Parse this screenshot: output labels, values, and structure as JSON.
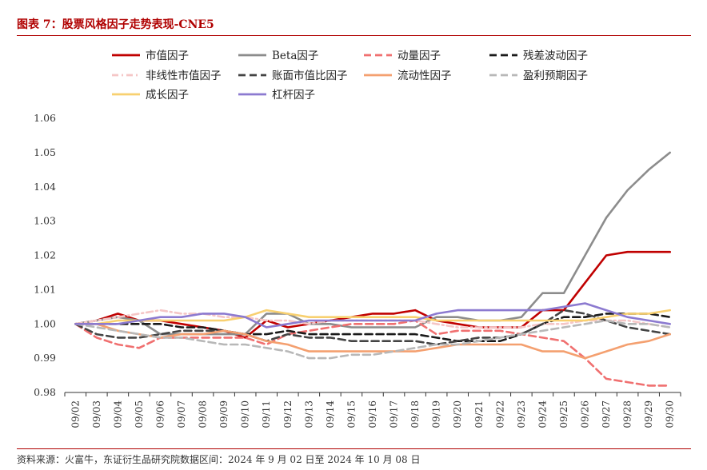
{
  "title": "图表 7：股票风格因子走势表现-CNE5",
  "source": "资料来源：火富牛，东证衍生品研究院数据区间：2024 年 9 月 02 日至 2024 年 10 月 08 日",
  "chart_data": {
    "type": "line",
    "xlabel": "",
    "ylabel": "",
    "ylim": [
      0.98,
      1.06
    ],
    "yticks": [
      "0.98",
      "0.99",
      "1.00",
      "1.01",
      "1.02",
      "1.03",
      "1.04",
      "1.05",
      "1.06"
    ],
    "x": [
      "09/02",
      "09/03",
      "09/04",
      "09/05",
      "09/06",
      "09/07",
      "09/08",
      "09/09",
      "09/10",
      "09/11",
      "09/12",
      "09/13",
      "09/14",
      "09/15",
      "09/16",
      "09/17",
      "09/18",
      "09/19",
      "09/20",
      "09/21",
      "09/22",
      "09/23",
      "09/24",
      "09/25",
      "09/26",
      "09/27",
      "09/28",
      "09/29",
      "09/30"
    ],
    "legend_position": "top",
    "series": [
      {
        "name": "市值因子",
        "color": "#c00000",
        "dash": "solid",
        "values": [
          1.0,
          1.001,
          1.003,
          1.001,
          1.001,
          1.0,
          0.999,
          0.998,
          0.996,
          1.001,
          0.999,
          1.0,
          1.001,
          1.002,
          1.003,
          1.003,
          1.004,
          1.001,
          1.0,
          0.999,
          0.999,
          0.999,
          1.004,
          1.004,
          1.012,
          1.02,
          1.021,
          1.021,
          1.021
        ]
      },
      {
        "name": "Beta因子",
        "color": "#8c8c8c",
        "dash": "solid",
        "values": [
          1.0,
          1.001,
          1.002,
          1.001,
          0.997,
          0.997,
          0.997,
          0.997,
          0.997,
          1.003,
          1.003,
          1.0,
          1.0,
          0.999,
          0.999,
          0.999,
          0.999,
          1.002,
          1.002,
          1.001,
          1.001,
          1.002,
          1.009,
          1.009,
          1.02,
          1.031,
          1.039,
          1.045,
          1.05
        ]
      },
      {
        "name": "动量因子",
        "color": "#f07070",
        "dash": "dashed",
        "values": [
          1.0,
          0.996,
          0.994,
          0.993,
          0.996,
          0.996,
          0.996,
          0.996,
          0.996,
          0.994,
          0.997,
          0.998,
          0.999,
          1.0,
          1.0,
          1.0,
          1.001,
          0.997,
          0.998,
          0.998,
          0.998,
          0.997,
          0.996,
          0.995,
          0.99,
          0.984,
          0.983,
          0.982,
          0.982
        ]
      },
      {
        "name": "残差波动因子",
        "color": "#1a1a1a",
        "dash": "dashed",
        "values": [
          1.0,
          1.0,
          1.0,
          1.0,
          1.0,
          0.999,
          0.999,
          0.998,
          0.997,
          0.997,
          0.998,
          0.997,
          0.997,
          0.997,
          0.997,
          0.997,
          0.997,
          0.996,
          0.995,
          0.995,
          0.995,
          0.997,
          1.0,
          1.002,
          1.002,
          1.003,
          1.003,
          1.003,
          1.002
        ]
      },
      {
        "name": "非线性市值因子",
        "color": "#f5c6c6",
        "dash": "dashdot",
        "values": [
          1.0,
          1.001,
          1.002,
          1.003,
          1.004,
          1.003,
          1.003,
          1.002,
          1.002,
          1.001,
          1.001,
          1.0,
          1.001,
          1.001,
          1.001,
          1.001,
          1.001,
          1.0,
          0.999,
          0.999,
          0.999,
          0.999,
          1.0,
          1.0,
          1.001,
          1.001,
          1.001,
          1.0,
          0.999
        ]
      },
      {
        "name": "账面市值比因子",
        "color": "#444444",
        "dash": "dashed",
        "values": [
          1.0,
          0.997,
          0.996,
          0.996,
          0.997,
          0.998,
          0.998,
          0.998,
          0.997,
          0.995,
          0.997,
          0.996,
          0.996,
          0.995,
          0.995,
          0.995,
          0.995,
          0.994,
          0.995,
          0.996,
          0.996,
          0.997,
          1.0,
          1.004,
          1.003,
          1.001,
          0.999,
          0.998,
          0.997
        ]
      },
      {
        "name": "流动性因子",
        "color": "#f4a070",
        "dash": "solid",
        "values": [
          1.0,
          1.0,
          0.998,
          0.997,
          0.996,
          0.997,
          0.997,
          0.998,
          0.997,
          0.995,
          0.994,
          0.992,
          0.992,
          0.992,
          0.992,
          0.992,
          0.992,
          0.993,
          0.994,
          0.994,
          0.994,
          0.994,
          0.992,
          0.992,
          0.99,
          0.992,
          0.994,
          0.995,
          0.997
        ]
      },
      {
        "name": "盈利预期因子",
        "color": "#b8b8b8",
        "dash": "dashed",
        "values": [
          1.0,
          0.999,
          0.998,
          0.997,
          0.996,
          0.996,
          0.995,
          0.994,
          0.994,
          0.993,
          0.992,
          0.99,
          0.99,
          0.991,
          0.991,
          0.992,
          0.993,
          0.994,
          0.994,
          0.995,
          0.996,
          0.997,
          0.998,
          0.999,
          1.0,
          1.001,
          1.0,
          1.0,
          0.999
        ]
      },
      {
        "name": "成长因子",
        "color": "#f8d070",
        "dash": "solid",
        "values": [
          1.0,
          1.0,
          1.001,
          1.001,
          1.001,
          1.001,
          1.001,
          1.001,
          1.002,
          1.004,
          1.003,
          1.002,
          1.002,
          1.002,
          1.002,
          1.002,
          1.002,
          1.001,
          1.001,
          1.001,
          1.001,
          1.001,
          1.001,
          1.001,
          1.001,
          1.002,
          1.003,
          1.003,
          1.004
        ]
      },
      {
        "name": "杠杆因子",
        "color": "#8c7ad0",
        "dash": "solid",
        "values": [
          1.0,
          1.0,
          1.0,
          1.001,
          1.002,
          1.002,
          1.003,
          1.003,
          1.002,
          0.999,
          1.0,
          1.001,
          1.001,
          1.001,
          1.001,
          1.001,
          1.001,
          1.003,
          1.004,
          1.004,
          1.004,
          1.004,
          1.004,
          1.005,
          1.006,
          1.004,
          1.002,
          1.001,
          1.0
        ]
      }
    ]
  }
}
